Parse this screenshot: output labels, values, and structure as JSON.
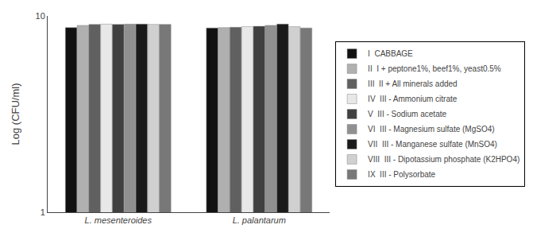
{
  "chart_data": {
    "type": "bar",
    "ylabel": "Log (CFU/ml)",
    "categories": [
      "L. mesenteroides",
      "L. palantarum"
    ],
    "series": [
      {
        "name": "I  CABBAGE",
        "color": "#111111",
        "values": [
          8.72,
          8.68
        ]
      },
      {
        "name": "II  I + peptone1%, beef1%, yeast0.5%",
        "color": "#b0b0b0",
        "values": [
          8.95,
          8.72
        ]
      },
      {
        "name": "III  II + All minerals added",
        "color": "#606060",
        "values": [
          9.05,
          8.75
        ]
      },
      {
        "name": "IV  III - Ammonium citrate",
        "color": "#e8e8e8",
        "values": [
          9.08,
          8.82
        ]
      },
      {
        "name": "V  III - Sodium acetate",
        "color": "#404040",
        "values": [
          9.05,
          8.85
        ]
      },
      {
        "name": "VI  III - Magnesium sulfate (MgSO4)",
        "color": "#909090",
        "values": [
          9.08,
          8.95
        ]
      },
      {
        "name": "VII  III - Manganese sulfate (MnSO4)",
        "color": "#1a1a1a",
        "values": [
          9.08,
          9.08
        ]
      },
      {
        "name": "VIII  III - Dipotassium phosphate (K2HPO4)",
        "color": "#d0d0d0",
        "values": [
          9.05,
          8.82
        ]
      },
      {
        "name": "IX  III - Polysorbate",
        "color": "#787878",
        "values": [
          9.05,
          8.68
        ]
      }
    ],
    "ylim": [
      1,
      10
    ],
    "yticks": [
      1,
      10
    ],
    "log": "y",
    "grid": true,
    "legend": "right"
  }
}
